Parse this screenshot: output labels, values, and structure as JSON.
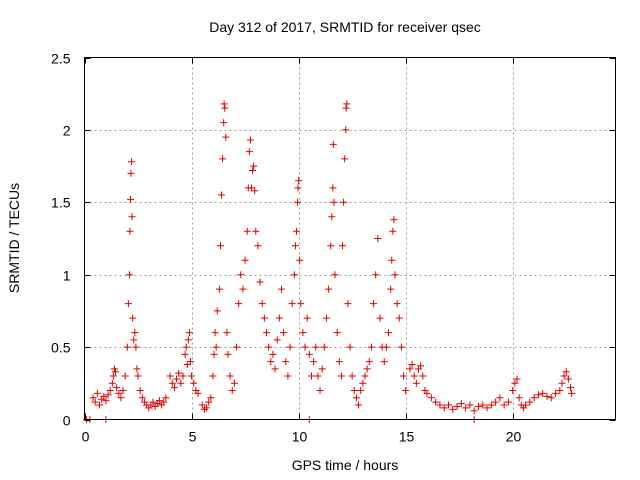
{
  "chart_data": {
    "type": "scatter",
    "title": "Day 312 of 2017, SRMTID for receiver qsec",
    "xlabel": "GPS time / hours",
    "ylabel": "SRMTID / TECUs",
    "xlim": [
      0,
      24.8
    ],
    "ylim": [
      0,
      2.5
    ],
    "xticks": [
      0,
      5,
      10,
      15,
      20
    ],
    "xtick_labels": [
      "0",
      "5",
      "10",
      "15",
      "20"
    ],
    "yticks": [
      0,
      0.5,
      1,
      1.5,
      2,
      2.5
    ],
    "ytick_labels": [
      "0",
      "0.5",
      "1",
      "1.5",
      "2",
      "2.5"
    ],
    "grid": true,
    "marker": "+",
    "color": "#e00000",
    "series": [
      {
        "name": "SRMTID",
        "points": [
          [
            0.1,
            0.0
          ],
          [
            0.25,
            0.0
          ],
          [
            1.0,
            0.0
          ],
          [
            10.5,
            0.0
          ],
          [
            18.2,
            0.0
          ],
          [
            0.4,
            0.15
          ],
          [
            0.5,
            0.12
          ],
          [
            0.6,
            0.18
          ],
          [
            0.7,
            0.1
          ],
          [
            0.8,
            0.14
          ],
          [
            0.9,
            0.16
          ],
          [
            1.0,
            0.13
          ],
          [
            1.1,
            0.17
          ],
          [
            1.2,
            0.2
          ],
          [
            1.3,
            0.25
          ],
          [
            1.35,
            0.3
          ],
          [
            1.4,
            0.35
          ],
          [
            1.45,
            0.33
          ],
          [
            1.5,
            0.22
          ],
          [
            1.6,
            0.18
          ],
          [
            1.7,
            0.15
          ],
          [
            1.8,
            0.2
          ],
          [
            1.9,
            0.3
          ],
          [
            2.0,
            0.5
          ],
          [
            2.05,
            0.8
          ],
          [
            2.1,
            1.0
          ],
          [
            2.12,
            1.3
          ],
          [
            2.15,
            1.52
          ],
          [
            2.17,
            1.7
          ],
          [
            2.2,
            1.78
          ],
          [
            2.22,
            1.4
          ],
          [
            2.25,
            0.7
          ],
          [
            2.3,
            0.55
          ],
          [
            2.35,
            0.6
          ],
          [
            2.4,
            0.5
          ],
          [
            2.45,
            0.35
          ],
          [
            2.5,
            0.3
          ],
          [
            2.6,
            0.2
          ],
          [
            2.7,
            0.15
          ],
          [
            2.8,
            0.12
          ],
          [
            2.9,
            0.1
          ],
          [
            3.0,
            0.08
          ],
          [
            3.1,
            0.1
          ],
          [
            3.2,
            0.12
          ],
          [
            3.3,
            0.09
          ],
          [
            3.4,
            0.11
          ],
          [
            3.5,
            0.13
          ],
          [
            3.6,
            0.1
          ],
          [
            3.7,
            0.12
          ],
          [
            3.8,
            0.15
          ],
          [
            4.0,
            0.3
          ],
          [
            4.1,
            0.25
          ],
          [
            4.2,
            0.22
          ],
          [
            4.3,
            0.28
          ],
          [
            4.4,
            0.32
          ],
          [
            4.5,
            0.25
          ],
          [
            4.6,
            0.3
          ],
          [
            4.7,
            0.45
          ],
          [
            4.75,
            0.5
          ],
          [
            4.8,
            0.38
          ],
          [
            4.85,
            0.55
          ],
          [
            4.9,
            0.6
          ],
          [
            4.95,
            0.4
          ],
          [
            5.0,
            0.3
          ],
          [
            5.1,
            0.25
          ],
          [
            5.2,
            0.2
          ],
          [
            5.3,
            0.18
          ],
          [
            5.5,
            0.1
          ],
          [
            5.6,
            0.07
          ],
          [
            5.7,
            0.08
          ],
          [
            5.8,
            0.12
          ],
          [
            5.9,
            0.15
          ],
          [
            6.0,
            0.3
          ],
          [
            6.05,
            0.45
          ],
          [
            6.1,
            0.6
          ],
          [
            6.15,
            0.5
          ],
          [
            6.2,
            0.75
          ],
          [
            6.3,
            0.9
          ],
          [
            6.35,
            1.2
          ],
          [
            6.4,
            1.55
          ],
          [
            6.45,
            1.8
          ],
          [
            6.5,
            2.05
          ],
          [
            6.55,
            2.15
          ],
          [
            6.52,
            2.18
          ],
          [
            6.6,
            1.95
          ],
          [
            6.65,
            0.6
          ],
          [
            6.7,
            0.45
          ],
          [
            6.8,
            0.3
          ],
          [
            6.9,
            0.2
          ],
          [
            7.0,
            0.25
          ],
          [
            7.1,
            0.5
          ],
          [
            7.2,
            0.8
          ],
          [
            7.3,
            1.0
          ],
          [
            7.4,
            0.9
          ],
          [
            7.5,
            1.1
          ],
          [
            7.6,
            1.3
          ],
          [
            7.65,
            1.6
          ],
          [
            7.7,
            1.85
          ],
          [
            7.75,
            1.93
          ],
          [
            7.8,
            1.6
          ],
          [
            7.85,
            1.72
          ],
          [
            7.9,
            1.75
          ],
          [
            7.95,
            1.58
          ],
          [
            8.0,
            1.3
          ],
          [
            8.1,
            1.2
          ],
          [
            8.2,
            0.95
          ],
          [
            8.3,
            0.8
          ],
          [
            8.4,
            0.7
          ],
          [
            8.5,
            0.6
          ],
          [
            8.6,
            0.5
          ],
          [
            8.7,
            0.4
          ],
          [
            8.8,
            0.45
          ],
          [
            8.9,
            0.35
          ],
          [
            9.0,
            0.55
          ],
          [
            9.1,
            0.7
          ],
          [
            9.2,
            0.9
          ],
          [
            9.3,
            0.6
          ],
          [
            9.4,
            0.4
          ],
          [
            9.5,
            0.3
          ],
          [
            9.6,
            0.5
          ],
          [
            9.7,
            0.8
          ],
          [
            9.8,
            1.0
          ],
          [
            9.85,
            1.2
          ],
          [
            9.9,
            1.3
          ],
          [
            9.95,
            1.5
          ],
          [
            9.97,
            1.6
          ],
          [
            10.0,
            1.65
          ],
          [
            10.05,
            1.1
          ],
          [
            10.1,
            0.8
          ],
          [
            10.2,
            0.6
          ],
          [
            10.3,
            0.5
          ],
          [
            10.4,
            0.7
          ],
          [
            10.5,
            0.45
          ],
          [
            10.6,
            0.3
          ],
          [
            10.7,
            0.4
          ],
          [
            10.8,
            0.5
          ],
          [
            10.9,
            0.3
          ],
          [
            11.0,
            0.2
          ],
          [
            11.1,
            0.35
          ],
          [
            11.2,
            0.5
          ],
          [
            11.3,
            0.7
          ],
          [
            11.4,
            0.9
          ],
          [
            11.5,
            1.2
          ],
          [
            11.55,
            1.4
          ],
          [
            11.6,
            1.6
          ],
          [
            11.62,
            1.9
          ],
          [
            11.65,
            1.5
          ],
          [
            11.7,
            1.0
          ],
          [
            11.8,
            0.6
          ],
          [
            11.9,
            0.4
          ],
          [
            12.0,
            0.3
          ],
          [
            12.05,
            1.2
          ],
          [
            12.1,
            1.5
          ],
          [
            12.15,
            1.8
          ],
          [
            12.2,
            2.0
          ],
          [
            12.22,
            2.15
          ],
          [
            12.25,
            2.18
          ],
          [
            12.3,
            0.8
          ],
          [
            12.4,
            0.5
          ],
          [
            12.5,
            0.3
          ],
          [
            12.6,
            0.2
          ],
          [
            12.7,
            0.15
          ],
          [
            12.8,
            0.1
          ],
          [
            12.9,
            0.2
          ],
          [
            13.0,
            0.25
          ],
          [
            13.1,
            0.3
          ],
          [
            13.2,
            0.35
          ],
          [
            13.3,
            0.4
          ],
          [
            13.4,
            0.5
          ],
          [
            13.5,
            0.8
          ],
          [
            13.6,
            1.0
          ],
          [
            13.7,
            1.25
          ],
          [
            13.8,
            0.7
          ],
          [
            13.9,
            0.5
          ],
          [
            14.0,
            0.4
          ],
          [
            14.1,
            0.5
          ],
          [
            14.2,
            0.6
          ],
          [
            14.3,
            0.9
          ],
          [
            14.35,
            1.1
          ],
          [
            14.4,
            1.3
          ],
          [
            14.45,
            1.38
          ],
          [
            14.5,
            1.0
          ],
          [
            14.6,
            0.8
          ],
          [
            14.7,
            0.7
          ],
          [
            14.8,
            0.5
          ],
          [
            14.9,
            0.3
          ],
          [
            15.0,
            0.2
          ],
          [
            15.2,
            0.35
          ],
          [
            15.3,
            0.38
          ],
          [
            15.4,
            0.3
          ],
          [
            15.5,
            0.25
          ],
          [
            15.6,
            0.35
          ],
          [
            15.7,
            0.37
          ],
          [
            15.8,
            0.3
          ],
          [
            15.9,
            0.2
          ],
          [
            16.0,
            0.18
          ],
          [
            16.2,
            0.15
          ],
          [
            16.4,
            0.12
          ],
          [
            16.6,
            0.1
          ],
          [
            16.8,
            0.08
          ],
          [
            17.0,
            0.1
          ],
          [
            17.2,
            0.07
          ],
          [
            17.4,
            0.09
          ],
          [
            17.6,
            0.11
          ],
          [
            17.8,
            0.08
          ],
          [
            18.0,
            0.1
          ],
          [
            18.2,
            0.06
          ],
          [
            18.4,
            0.09
          ],
          [
            18.6,
            0.1
          ],
          [
            18.8,
            0.08
          ],
          [
            19.0,
            0.1
          ],
          [
            19.2,
            0.12
          ],
          [
            19.4,
            0.15
          ],
          [
            19.6,
            0.1
          ],
          [
            19.8,
            0.12
          ],
          [
            20.0,
            0.2
          ],
          [
            20.1,
            0.25
          ],
          [
            20.2,
            0.28
          ],
          [
            20.3,
            0.15
          ],
          [
            20.4,
            0.1
          ],
          [
            20.5,
            0.08
          ],
          [
            20.6,
            0.1
          ],
          [
            20.8,
            0.12
          ],
          [
            21.0,
            0.15
          ],
          [
            21.2,
            0.17
          ],
          [
            21.4,
            0.18
          ],
          [
            21.6,
            0.16
          ],
          [
            21.8,
            0.15
          ],
          [
            22.0,
            0.18
          ],
          [
            22.2,
            0.2
          ],
          [
            22.3,
            0.25
          ],
          [
            22.4,
            0.3
          ],
          [
            22.5,
            0.33
          ],
          [
            22.6,
            0.28
          ],
          [
            22.7,
            0.22
          ],
          [
            22.75,
            0.18
          ]
        ]
      }
    ]
  }
}
